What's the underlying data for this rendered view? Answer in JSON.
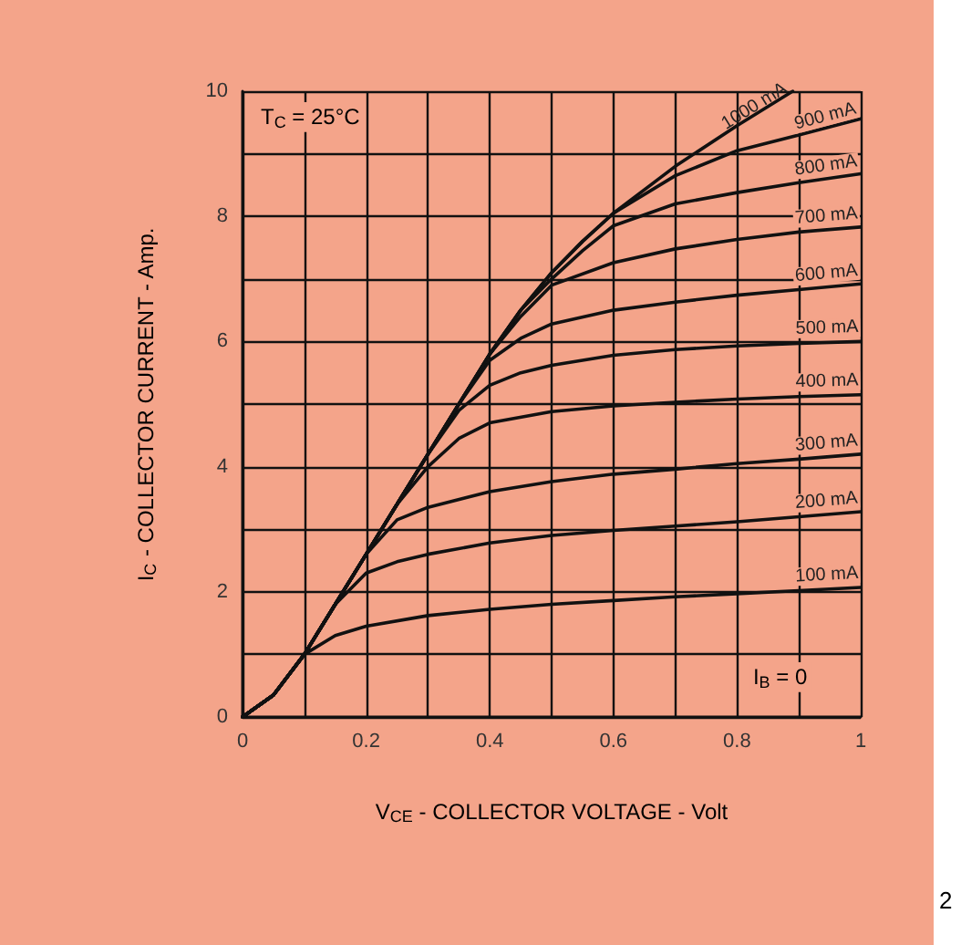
{
  "chart_data": {
    "type": "line",
    "xlabel": "V$_{CE}$ - COLLECTOR VOLTAGE - Volt",
    "ylabel": "I$_{C}$ - COLLECTOR CURRENT - Amp.",
    "annotations": [
      "T$_{C}$ = 25°C",
      "I$_{B}$ = 0",
      "2"
    ],
    "xlim": [
      0,
      1
    ],
    "ylim": [
      0,
      10
    ],
    "xticks": [
      0,
      {
        "value": 0.1,
        "label": null
      },
      0.2,
      {
        "value": 0.3,
        "label": null
      },
      0.4,
      {
        "value": 0.5,
        "label": null
      },
      0.6,
      {
        "value": 0.7,
        "label": null
      },
      0.8,
      {
        "value": 0.9,
        "label": null
      },
      1
    ],
    "yticks": [
      0,
      {
        "value": 1,
        "label": null
      },
      2,
      {
        "value": 3,
        "label": null
      },
      4,
      {
        "value": 5,
        "label": null
      },
      6,
      {
        "value": 7,
        "label": null
      },
      8,
      {
        "value": 9,
        "label": null
      },
      10
    ],
    "grid": true,
    "legend": false,
    "marker": "none",
    "line_style": "solid",
    "series": [
      {
        "name": "100 mA",
        "color": "#111111",
        "x": [
          0,
          0.05,
          0.1,
          0.15,
          0.2,
          0.3,
          0.4,
          0.5,
          0.6,
          0.7,
          0.8,
          0.9,
          1
        ],
        "values": [
          0,
          0.35,
          1.0,
          1.3,
          1.45,
          1.62,
          1.72,
          1.8,
          1.86,
          1.92,
          1.97,
          2.02,
          2.07
        ]
      },
      {
        "name": "200 mA",
        "color": "#111111",
        "x": [
          0,
          0.05,
          0.1,
          0.15,
          0.2,
          0.25,
          0.3,
          0.4,
          0.5,
          0.6,
          0.7,
          0.8,
          0.9,
          1
        ],
        "values": [
          0,
          0.35,
          1.0,
          1.8,
          2.3,
          2.48,
          2.6,
          2.78,
          2.9,
          2.98,
          3.05,
          3.12,
          3.2,
          3.28
        ]
      },
      {
        "name": "300 mA",
        "color": "#111111",
        "x": [
          0,
          0.05,
          0.1,
          0.15,
          0.2,
          0.25,
          0.3,
          0.4,
          0.5,
          0.6,
          0.7,
          0.8,
          0.9,
          1
        ],
        "values": [
          0,
          0.35,
          1.0,
          1.8,
          2.6,
          3.15,
          3.35,
          3.6,
          3.76,
          3.88,
          3.96,
          4.05,
          4.12,
          4.2
        ]
      },
      {
        "name": "400 mA",
        "color": "#111111",
        "x": [
          0,
          0.05,
          0.1,
          0.15,
          0.2,
          0.25,
          0.3,
          0.35,
          0.4,
          0.5,
          0.6,
          0.7,
          0.8,
          0.9,
          1
        ],
        "values": [
          0,
          0.35,
          1.0,
          1.8,
          2.6,
          3.4,
          4.0,
          4.45,
          4.7,
          4.88,
          4.97,
          5.03,
          5.08,
          5.12,
          5.15
        ]
      },
      {
        "name": "500 mA",
        "color": "#111111",
        "x": [
          0,
          0.05,
          0.1,
          0.15,
          0.2,
          0.25,
          0.3,
          0.35,
          0.4,
          0.45,
          0.5,
          0.6,
          0.7,
          0.8,
          0.9,
          1
        ],
        "values": [
          0,
          0.35,
          1.0,
          1.8,
          2.6,
          3.4,
          4.2,
          4.9,
          5.3,
          5.5,
          5.62,
          5.78,
          5.87,
          5.93,
          5.97,
          6.0
        ]
      },
      {
        "name": "600 mA",
        "color": "#111111",
        "x": [
          0,
          0.05,
          0.1,
          0.15,
          0.2,
          0.25,
          0.3,
          0.35,
          0.4,
          0.45,
          0.5,
          0.6,
          0.7,
          0.8,
          0.9,
          1
        ],
        "values": [
          0,
          0.35,
          1.0,
          1.8,
          2.6,
          3.4,
          4.2,
          5.0,
          5.7,
          6.05,
          6.28,
          6.5,
          6.63,
          6.74,
          6.83,
          6.92
        ]
      },
      {
        "name": "700 mA",
        "color": "#111111",
        "x": [
          0,
          0.05,
          0.1,
          0.15,
          0.2,
          0.25,
          0.3,
          0.35,
          0.4,
          0.45,
          0.5,
          0.6,
          0.7,
          0.8,
          0.9,
          1
        ],
        "values": [
          0,
          0.35,
          1.0,
          1.8,
          2.6,
          3.4,
          4.2,
          5.0,
          5.8,
          6.4,
          6.9,
          7.26,
          7.48,
          7.63,
          7.75,
          7.83
        ]
      },
      {
        "name": "800 mA",
        "color": "#111111",
        "x": [
          0,
          0.05,
          0.1,
          0.15,
          0.2,
          0.25,
          0.3,
          0.35,
          0.4,
          0.45,
          0.5,
          0.55,
          0.6,
          0.7,
          0.8,
          0.9,
          1
        ],
        "values": [
          0,
          0.35,
          1.0,
          1.8,
          2.6,
          3.4,
          4.2,
          5.0,
          5.8,
          6.5,
          7.0,
          7.45,
          7.85,
          8.2,
          8.38,
          8.54,
          8.68
        ]
      },
      {
        "name": "900 mA",
        "color": "#111111",
        "x": [
          0,
          0.05,
          0.1,
          0.15,
          0.2,
          0.25,
          0.3,
          0.35,
          0.4,
          0.45,
          0.5,
          0.55,
          0.6,
          0.7,
          0.8,
          0.9,
          1
        ],
        "values": [
          0,
          0.35,
          1.0,
          1.8,
          2.6,
          3.4,
          4.2,
          5.0,
          5.8,
          6.5,
          7.1,
          7.6,
          8.05,
          8.65,
          9.05,
          9.3,
          9.56
        ]
      },
      {
        "name": "1000 mA",
        "color": "#111111",
        "x": [
          0,
          0.05,
          0.1,
          0.15,
          0.2,
          0.25,
          0.3,
          0.35,
          0.4,
          0.45,
          0.5,
          0.55,
          0.6,
          0.7,
          0.8,
          0.89
        ],
        "values": [
          0,
          0.35,
          1.0,
          1.8,
          2.6,
          3.4,
          4.2,
          5.0,
          5.8,
          6.5,
          7.1,
          7.6,
          8.05,
          8.8,
          9.45,
          10
        ]
      }
    ]
  }
}
